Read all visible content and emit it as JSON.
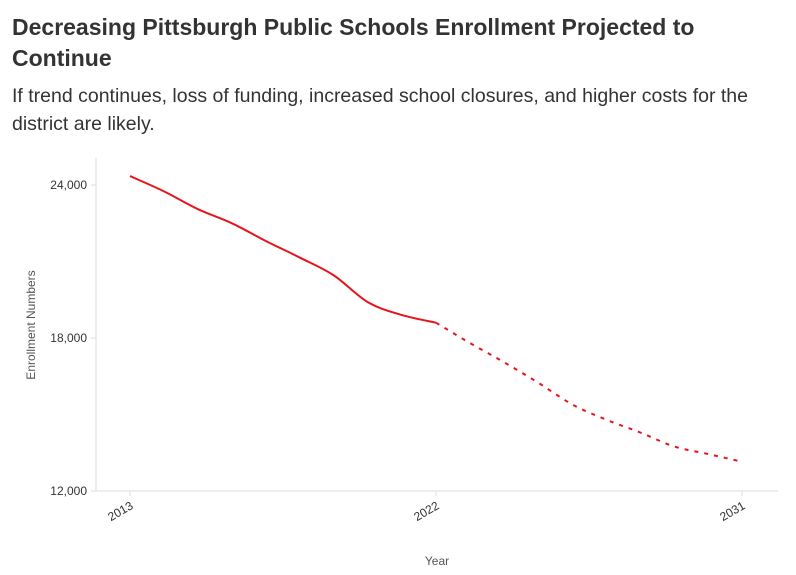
{
  "title": "Decreasing Pittsburgh Public Schools Enrollment Projected to Continue",
  "subtitle": "If trend continues, loss of funding, increased school closures, and higher costs for the district are likely.",
  "colors": {
    "line": "#e8141b",
    "axis": "#dddddd",
    "text": "#333333"
  },
  "chart_data": {
    "type": "line",
    "title": "Decreasing Pittsburgh Public Schools Enrollment Projected to Continue",
    "subtitle": "If trend continues, loss of funding, increased school closures, and higher costs for the district are likely.",
    "xlabel": "Year",
    "ylabel": "Enrollment Numbers",
    "xlim": [
      2013,
      2031
    ],
    "ylim": [
      12000,
      25000
    ],
    "x_ticks": [
      2013,
      2022,
      2031
    ],
    "x_tick_labels": [
      "2013",
      "2022",
      "2031"
    ],
    "y_ticks": [
      12000,
      18000,
      24000
    ],
    "y_tick_labels": [
      "12,000",
      "18,000",
      "24,000"
    ],
    "grid": false,
    "series": [
      {
        "style": "solid",
        "x": [
          2013,
          2014,
          2015,
          2016,
          2017,
          2018,
          2019,
          2020,
          2021,
          2022
        ],
        "values": [
          24350,
          23750,
          23050,
          22500,
          21800,
          21150,
          20450,
          19400,
          18900,
          18600
        ]
      },
      {
        "style": "dashed",
        "x": [
          2022,
          2023,
          2024,
          2025,
          2026,
          2027,
          2028,
          2029,
          2030,
          2031
        ],
        "values": [
          18600,
          17800,
          17050,
          16250,
          15400,
          14800,
          14300,
          13750,
          13450,
          13150
        ]
      }
    ]
  }
}
